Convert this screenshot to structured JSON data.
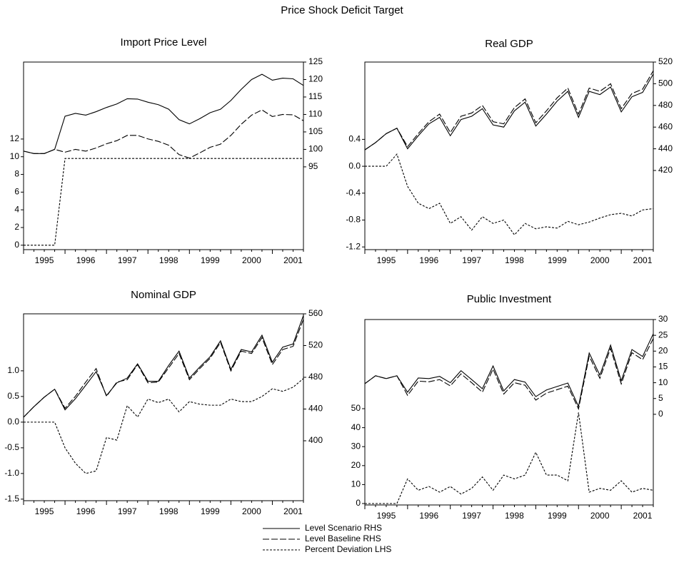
{
  "title": "Price Shock Deficit Target",
  "legend": [
    {
      "label": "Level Scenario  RHS",
      "style": "solid"
    },
    {
      "label": "Level Baseline RHS",
      "style": "dashed"
    },
    {
      "label": "Percent Deviation LHS",
      "style": "dotted"
    }
  ],
  "chart_data": [
    {
      "type": "line",
      "title": "Import Price Level",
      "categories": [
        "1995",
        null,
        null,
        null,
        "1996",
        null,
        null,
        null,
        "1997",
        null,
        null,
        null,
        "1998",
        null,
        null,
        null,
        "1999",
        null,
        null,
        null,
        "2000",
        null,
        null,
        null,
        "2001",
        null,
        null,
        null
      ],
      "ylim": [
        -0.5,
        20.7
      ],
      "yticks": [
        0,
        2,
        4,
        6,
        8,
        10,
        12
      ],
      "y2lim": [
        71.3,
        125
      ],
      "y2ticks": [
        95,
        100,
        105,
        110,
        115,
        120,
        125
      ],
      "series": [
        {
          "style": "solid",
          "axis": "y2",
          "color": "#000000",
          "values": [
            99.5,
            98.8,
            98.8,
            100,
            109.5,
            110.3,
            109.8,
            110.8,
            112,
            113,
            114.5,
            114.4,
            113.5,
            112.8,
            111.5,
            108.5,
            107.3,
            108.8,
            110.5,
            111.5,
            114,
            117.2,
            120,
            121.5,
            119.8,
            120.4,
            120.2,
            118.3
          ]
        },
        {
          "style": "dashed",
          "axis": "y2",
          "color": "#000000",
          "values": [
            99.5,
            98.8,
            98.8,
            100,
            99.2,
            100,
            99.5,
            100.4,
            101.6,
            102.5,
            104,
            104,
            103,
            102.3,
            101.2,
            98.5,
            97.5,
            99,
            100.6,
            101.5,
            104,
            107.2,
            109.8,
            111.3,
            109.4,
            110,
            109.9,
            108.2
          ]
        },
        {
          "style": "dotted",
          "color": "#000000",
          "values": [
            0,
            0,
            0,
            0,
            9.8,
            9.8,
            9.8,
            9.8,
            9.8,
            9.8,
            9.8,
            9.8,
            9.8,
            9.8,
            9.8,
            9.8,
            9.8,
            9.8,
            9.8,
            9.8,
            9.8,
            9.8,
            9.8,
            9.8,
            9.8,
            9.8,
            9.8,
            9.8
          ]
        }
      ]
    },
    {
      "type": "line",
      "title": "Real GDP",
      "categories": [
        "1995",
        null,
        null,
        null,
        "1996",
        null,
        null,
        null,
        "1997",
        null,
        null,
        null,
        "1998",
        null,
        null,
        null,
        "1999",
        null,
        null,
        null,
        "2000",
        null,
        null,
        null,
        "2001",
        null,
        null,
        null
      ],
      "ylim": [
        -1.24,
        1.55
      ],
      "yticks": [
        0.4,
        {
          "value": 0,
          "label": "0.0"
        },
        -0.4,
        -0.8,
        -1.2
      ],
      "y2lim": [
        347,
        520
      ],
      "y2ticks": [
        420,
        440,
        460,
        480,
        500,
        520
      ],
      "series": [
        {
          "style": "solid",
          "axis": "y2",
          "color": "#000000",
          "values": [
            439,
            445.7,
            454,
            459,
            440,
            452,
            463,
            469,
            452,
            467,
            470,
            477,
            462,
            460,
            475,
            483,
            461,
            472,
            484,
            493,
            469,
            493,
            490,
            497,
            474,
            488,
            492,
            509
          ]
        },
        {
          "style": "dashed",
          "axis": "y2",
          "color": "#000000",
          "values": [
            439,
            445.7,
            454,
            459,
            442,
            454,
            465,
            472,
            455,
            470,
            473,
            480,
            465,
            463,
            478,
            486,
            464,
            475,
            487,
            496,
            472,
            496,
            493,
            500,
            477,
            491,
            495,
            512
          ]
        },
        {
          "style": "dotted",
          "color": "#000000",
          "values": [
            0,
            0,
            0,
            0.18,
            -0.3,
            -0.55,
            -0.63,
            -0.55,
            -0.85,
            -0.75,
            -0.95,
            -0.75,
            -0.85,
            -0.8,
            -1.02,
            -0.85,
            -0.93,
            -0.9,
            -0.92,
            -0.82,
            -0.87,
            -0.83,
            -0.77,
            -0.72,
            -0.7,
            -0.74,
            -0.65,
            -0.63
          ]
        }
      ]
    },
    {
      "type": "line",
      "title": "Nominal GDP",
      "categories": [
        "1995",
        null,
        null,
        null,
        "1996",
        null,
        null,
        null,
        "1997",
        null,
        null,
        null,
        "1998",
        null,
        null,
        null,
        "1999",
        null,
        null,
        null,
        "2000",
        null,
        null,
        null,
        "2001",
        null,
        null,
        null
      ],
      "ylim": [
        -1.53,
        2.11
      ],
      "yticks": [
        {
          "value": 1,
          "label": "1.0"
        },
        0.5,
        {
          "value": 0,
          "label": "0.0"
        },
        -0.5,
        {
          "value": -1,
          "label": "-1.0"
        },
        -1.5
      ],
      "y2lim": [
        324.5,
        560
      ],
      "y2ticks": [
        400,
        440,
        480,
        520,
        560
      ],
      "series": [
        {
          "style": "solid",
          "axis": "y2",
          "color": "#000000",
          "values": [
            429.7,
            443,
            455,
            465,
            439,
            453,
            470,
            487,
            457,
            473,
            479,
            497,
            475,
            475,
            495,
            513,
            479,
            493,
            506,
            526,
            490,
            515,
            512,
            533,
            499,
            518,
            522,
            558
          ]
        },
        {
          "style": "dashed",
          "axis": "y2",
          "color": "#000000",
          "values": [
            429.7,
            443,
            455,
            465,
            441,
            456,
            474,
            491,
            456,
            474,
            477,
            496,
            473,
            474,
            492,
            510,
            477,
            491,
            504,
            524,
            488,
            513,
            510,
            530,
            496,
            515,
            519,
            553
          ]
        },
        {
          "style": "dotted",
          "color": "#000000",
          "values": [
            0,
            0,
            0,
            0,
            -0.5,
            -0.8,
            -1.0,
            -0.95,
            -0.3,
            -0.35,
            0.32,
            0.1,
            0.45,
            0.38,
            0.45,
            0.2,
            0.4,
            0.35,
            0.33,
            0.33,
            0.45,
            0.4,
            0.4,
            0.5,
            0.65,
            0.6,
            0.68,
            0.85
          ]
        }
      ]
    },
    {
      "type": "line",
      "title": "Public Investment",
      "categories": [
        "1995",
        null,
        null,
        null,
        "1996",
        null,
        null,
        null,
        "1997",
        null,
        null,
        null,
        "1998",
        null,
        null,
        null,
        "1999",
        null,
        null,
        null,
        "2000",
        null,
        null,
        null,
        "2001",
        null,
        null,
        null
      ],
      "ylim": [
        -0.75,
        97
      ],
      "yticks": [
        0,
        10,
        20,
        30,
        40,
        50
      ],
      "y2lim": [
        -28.7,
        30
      ],
      "y2ticks": [
        0,
        5,
        10,
        15,
        20,
        25,
        30
      ],
      "series": [
        {
          "style": "solid",
          "axis": "y2",
          "color": "#000000",
          "values": [
            9.7,
            12.2,
            11.3,
            12.2,
            7,
            11.5,
            11.3,
            12,
            10,
            13.8,
            11,
            8.1,
            15.3,
            7.4,
            11,
            10.2,
            5.6,
            7.7,
            8.8,
            9.9,
            2.5,
            19.4,
            12.4,
            21.9,
            10.6,
            20.5,
            18.3,
            25.5
          ]
        },
        {
          "style": "dashed",
          "axis": "y2",
          "color": "#000000",
          "values": [
            9.7,
            12.2,
            11.3,
            12.2,
            6,
            10.5,
            10.3,
            11,
            9,
            12.8,
            10,
            7,
            14.3,
            6.4,
            10,
            9.2,
            4.5,
            6.7,
            7.8,
            8.9,
            1.7,
            18.4,
            11.4,
            20.9,
            9.6,
            19.5,
            17.3,
            24
          ]
        },
        {
          "style": "dotted",
          "color": "#000000",
          "values": [
            0,
            0,
            0,
            0,
            13,
            7,
            9,
            6,
            9,
            5,
            8,
            14,
            7,
            15,
            13,
            15,
            27,
            15,
            15,
            12,
            48,
            6,
            8,
            7,
            12,
            6,
            8,
            7
          ]
        }
      ]
    }
  ]
}
